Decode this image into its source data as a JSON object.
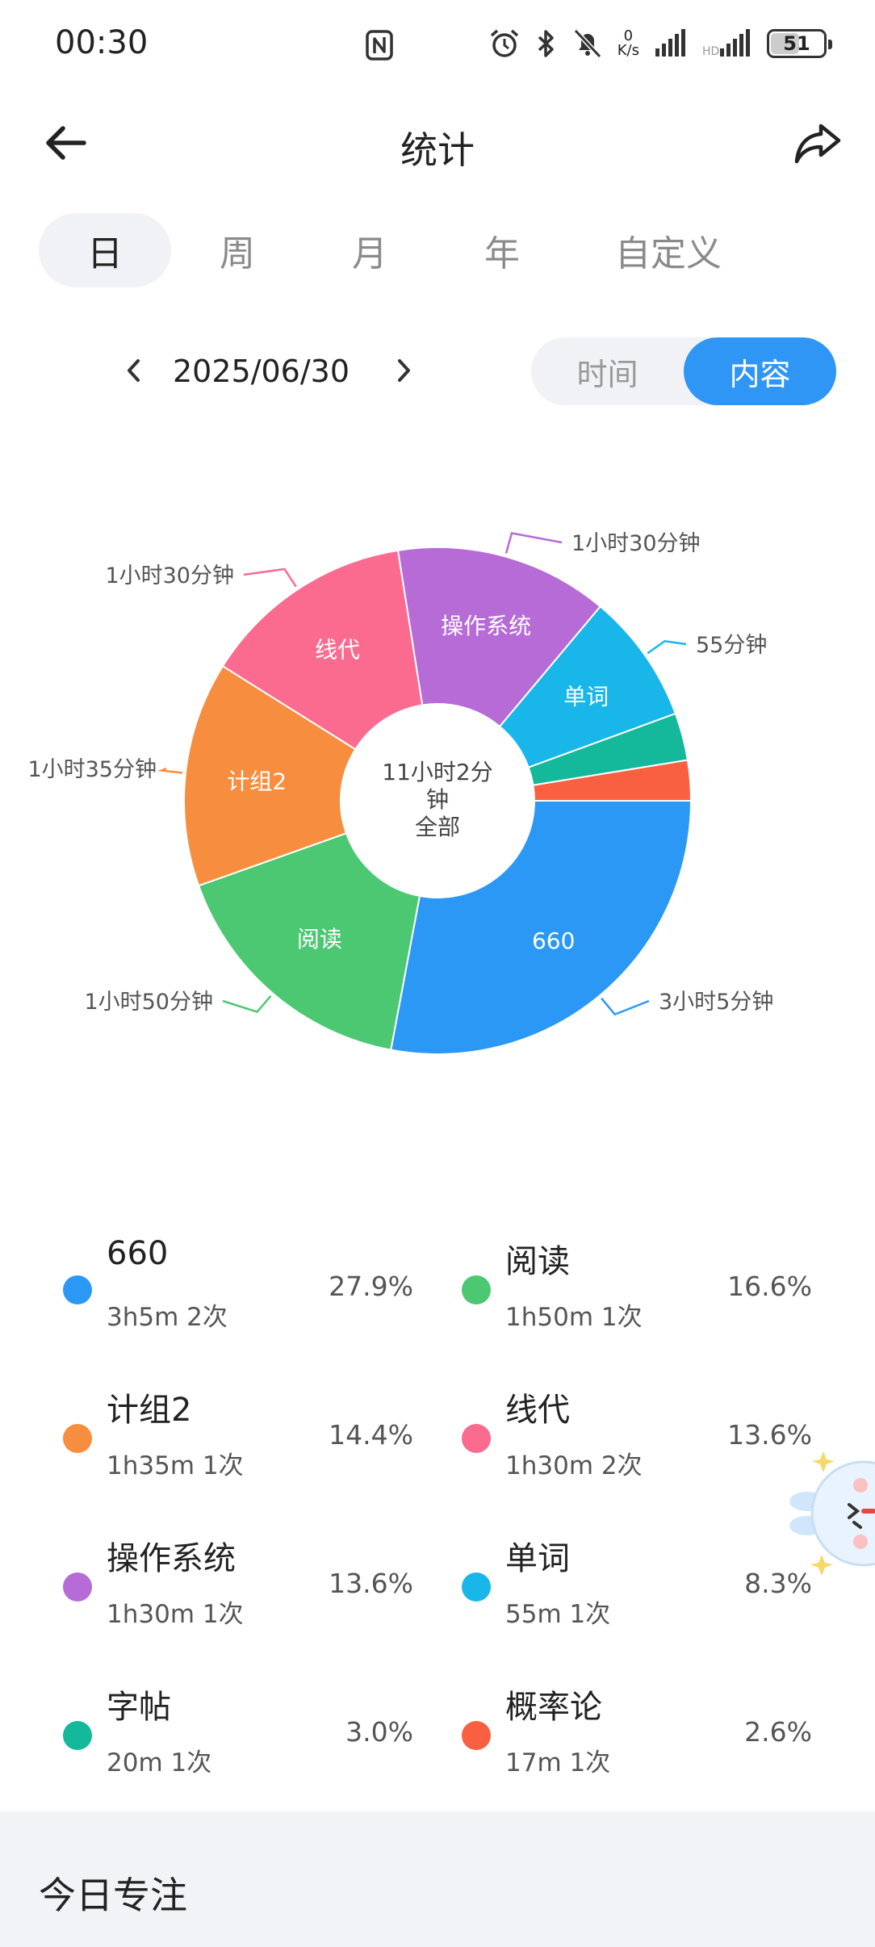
{
  "status_bar": {
    "time": "00:30",
    "net_speed_value": "0",
    "net_speed_unit": "K/s",
    "battery": "51",
    "icons": [
      "nfc-icon",
      "alarm-icon",
      "bluetooth-icon",
      "mute-icon",
      "signal-icon",
      "signal-icon-2",
      "battery-icon"
    ]
  },
  "header": {
    "title": "统计",
    "back_icon": "arrow-left-icon",
    "share_icon": "share-icon"
  },
  "period_tabs": [
    {
      "label": "日",
      "active": true
    },
    {
      "label": "周",
      "active": false
    },
    {
      "label": "月",
      "active": false
    },
    {
      "label": "年",
      "active": false
    },
    {
      "label": "自定义",
      "active": false
    }
  ],
  "date_nav": {
    "date": "2025/06/30",
    "prev_icon": "chevron-left-icon",
    "next_icon": "chevron-right-icon"
  },
  "mode_toggle": [
    {
      "label": "时间",
      "active": false
    },
    {
      "label": "内容",
      "active": true
    }
  ],
  "chart_data": {
    "type": "pie",
    "center_text": [
      "11小时2分",
      "钟",
      "全部"
    ],
    "slices": [
      {
        "name": "660",
        "value": 185,
        "percent": 27.9,
        "color": "#2c98f6",
        "duration_label": "3小时5分钟"
      },
      {
        "name": "阅读",
        "value": 110,
        "percent": 16.6,
        "color": "#4bc871",
        "duration_label": "1小时50分钟"
      },
      {
        "name": "计组2",
        "value": 95,
        "percent": 14.4,
        "color": "#f78e3f",
        "duration_label": "1小时35分钟"
      },
      {
        "name": "线代",
        "value": 90,
        "percent": 13.6,
        "color": "#fb6a8f",
        "duration_label": "1小时30分钟"
      },
      {
        "name": "操作系统",
        "value": 90,
        "percent": 13.6,
        "color": "#b76bd6",
        "duration_label": "1小时30分钟"
      },
      {
        "name": "单词",
        "value": 55,
        "percent": 8.3,
        "color": "#19b6ea",
        "duration_label": "55分钟"
      },
      {
        "name": "字帖",
        "value": 20,
        "percent": 3.0,
        "color": "#13b99a",
        "duration_label": ""
      },
      {
        "name": "概率论",
        "value": 17,
        "percent": 2.6,
        "color": "#f96041",
        "duration_label": ""
      }
    ]
  },
  "legend": [
    {
      "name": "660",
      "detail": "3h5m  2次",
      "percent": "27.9%",
      "color": "#2c98f6"
    },
    {
      "name": "阅读",
      "detail": "1h50m  1次",
      "percent": "16.6%",
      "color": "#4bc871"
    },
    {
      "name": "计组2",
      "detail": "1h35m  1次",
      "percent": "14.4%",
      "color": "#f78e3f"
    },
    {
      "name": "线代",
      "detail": "1h30m  2次",
      "percent": "13.6%",
      "color": "#fb6a8f"
    },
    {
      "name": "操作系统",
      "detail": "1h30m  1次",
      "percent": "13.6%",
      "color": "#b76bd6"
    },
    {
      "name": "单词",
      "detail": "55m  1次",
      "percent": "8.3%",
      "color": "#19b6ea"
    },
    {
      "name": "字帖",
      "detail": "20m  1次",
      "percent": "3.0%",
      "color": "#13b99a"
    },
    {
      "name": "概率论",
      "detail": "17m  1次",
      "percent": "2.6%",
      "color": "#f96041"
    }
  ],
  "bottom_section": {
    "title": "今日专注"
  }
}
